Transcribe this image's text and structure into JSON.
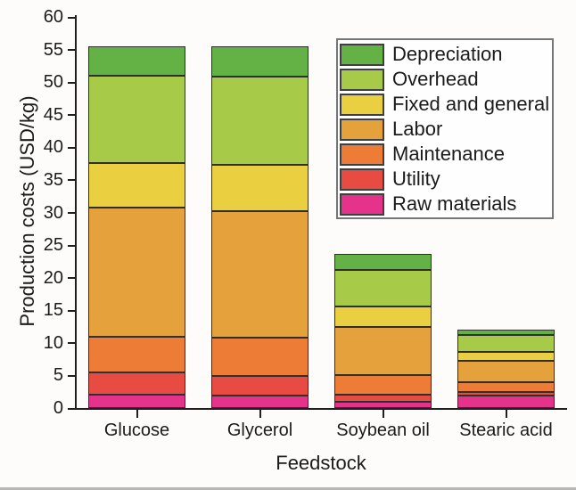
{
  "chart_data": {
    "type": "bar",
    "stacked": true,
    "title": "",
    "xlabel": "Feedstock",
    "ylabel": "Production costs (USD/kg)",
    "ylim": [
      0,
      60
    ],
    "ytick_step": 5,
    "grid": false,
    "legend_position": "upper right inside plot",
    "categories": [
      "Glucose",
      "Glycerol",
      "Soybean oil",
      "Stearic acid"
    ],
    "series": [
      {
        "name": "Raw materials",
        "color": "#e5328b",
        "values": [
          2.0,
          1.9,
          1.0,
          1.9
        ]
      },
      {
        "name": "Utility",
        "color": "#e74b41",
        "values": [
          3.5,
          3.0,
          1.0,
          0.6
        ]
      },
      {
        "name": "Maintenance",
        "color": "#ed7d36",
        "values": [
          5.5,
          5.9,
          3.0,
          1.5
        ]
      },
      {
        "name": "Labor",
        "color": "#e4a13c",
        "values": [
          19.8,
          19.4,
          7.4,
          3.3
        ]
      },
      {
        "name": "Fixed and general",
        "color": "#ead040",
        "values": [
          6.8,
          7.1,
          3.2,
          1.3
        ]
      },
      {
        "name": "Overhead",
        "color": "#a8ca49",
        "values": [
          13.4,
          13.5,
          5.6,
          2.6
        ]
      },
      {
        "name": "Depreciation",
        "color": "#64b146",
        "values": [
          4.5,
          4.7,
          2.5,
          0.8
        ]
      }
    ],
    "totals": [
      55.5,
      55.5,
      23.7,
      12.0
    ],
    "legend_order_top_to_bottom": [
      "Depreciation",
      "Overhead",
      "Fixed and general",
      "Labor",
      "Maintenance",
      "Utility",
      "Raw materials"
    ]
  },
  "colors": {
    "segment_border": "#2f2f2f",
    "axis": "#1f1f1f",
    "text": "#1b1b1b",
    "background": "#fdfcfa",
    "legend_border": "#757575",
    "page_edge": "#b9b7b4"
  }
}
